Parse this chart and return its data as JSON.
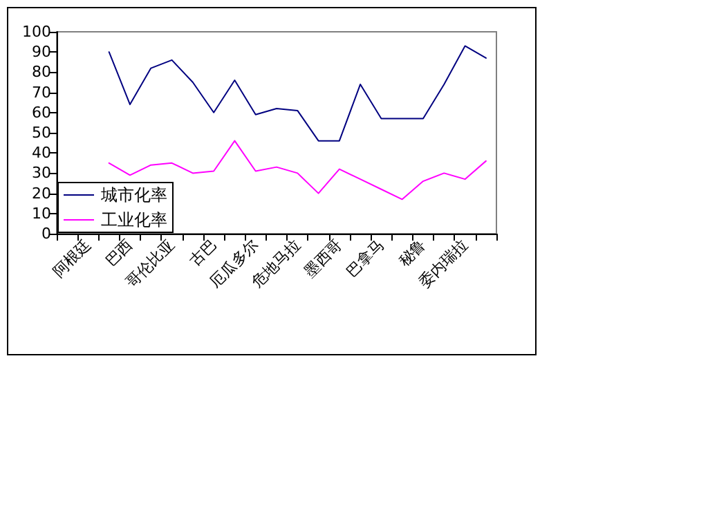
{
  "chart_data": {
    "type": "line",
    "categories": [
      null,
      "阿根廷",
      null,
      "巴西",
      null,
      "哥伦比亚",
      null,
      "古巴",
      null,
      "厄瓜多尔",
      null,
      "危地马拉",
      null,
      "墨西哥",
      null,
      "巴拿马",
      null,
      "秘鲁",
      null,
      "委内瑞拉",
      null
    ],
    "series": [
      {
        "name": "城市化率",
        "color": "#000080",
        "values": [
          null,
          null,
          90,
          64,
          82,
          86,
          75,
          60,
          76,
          59,
          62,
          61,
          46,
          46,
          74,
          57,
          57,
          57,
          74,
          93,
          87
        ]
      },
      {
        "name": "工业化率",
        "color": "#ff00ff",
        "values": [
          null,
          null,
          35,
          29,
          34,
          35,
          30,
          31,
          46,
          31,
          33,
          30,
          20,
          32,
          27,
          22,
          17,
          26,
          30,
          27,
          36
        ]
      }
    ],
    "ylim": [
      0,
      100
    ],
    "yticks": [
      0,
      10,
      20,
      30,
      40,
      50,
      60,
      70,
      80,
      90,
      100
    ],
    "grid": false,
    "legend": "bottom left",
    "marker": "none",
    "line_style": "solid"
  }
}
